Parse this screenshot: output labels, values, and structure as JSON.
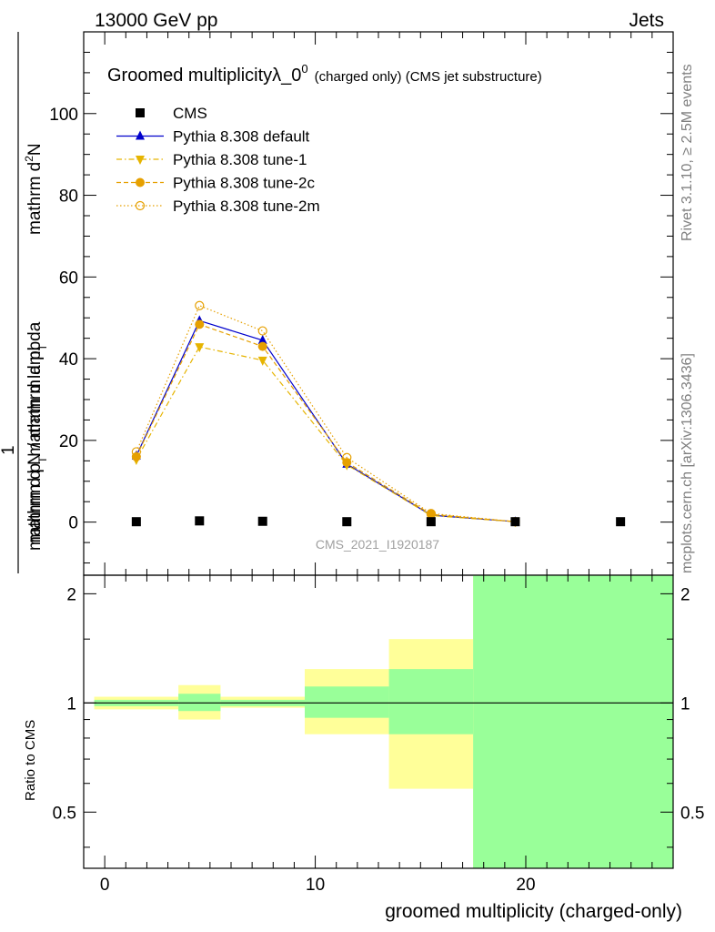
{
  "header": {
    "left": "13000 GeV pp",
    "right": "Jets"
  },
  "side_labels": {
    "rivet": "Rivet 3.1.10, ≥ 2.5M events",
    "mcplots": "mcplots.cern.ch [arXiv:1306.3436]"
  },
  "chart_data": [
    {
      "type": "line",
      "title_main": "Groomed multiplicityλ_0",
      "title_sup": "0",
      "title_suffix": "(charged only) (CMS jet substructure)",
      "ylabel_numerator_main": "mathrm d",
      "ylabel_numerator_sup": "2",
      "ylabel_numerator_end": "N",
      "ylabel_denominator_a": "mathrm d p",
      "ylabel_denominator_sub": "T",
      "ylabel_denominator_b": "mathrm d lambda",
      "ylabel_fraction_one": "1",
      "ylabel_fraction_den_a": "mathrm d N / mathrm d p",
      "ylabel_fraction_den_sub": "T",
      "watermark": "CMS_2021_I1920187",
      "xlim": [
        -1,
        27
      ],
      "ylim": [
        -13,
        120
      ],
      "yticks": [
        0,
        20,
        40,
        60,
        80,
        100
      ],
      "legend_placement": "top-left",
      "series": [
        {
          "name": "CMS",
          "color": "#000000",
          "marker": "square",
          "line": "none",
          "x": [
            1.5,
            4.5,
            7.5,
            11.5,
            15.5,
            19.5,
            24.5
          ],
          "y": [
            0.1,
            0.3,
            0.2,
            0.1,
            0.1,
            0.1,
            0.1
          ]
        },
        {
          "name": "Pythia 8.308 default",
          "color": "#0000cc",
          "marker": "triangle-up",
          "line": "solid",
          "x": [
            1.5,
            4.5,
            7.5,
            11.5,
            15.5,
            19.5
          ],
          "y": [
            16.2,
            49.3,
            44.5,
            14.2,
            1.7,
            0.1
          ]
        },
        {
          "name": "Pythia 8.308 tune-1",
          "color": "#e6b400",
          "marker": "triangle-down",
          "line": "dashdot",
          "x": [
            1.5,
            4.5,
            7.5,
            11.5,
            15.5,
            19.5
          ],
          "y": [
            15.3,
            42.9,
            39.6,
            14.0,
            1.6,
            0.1
          ]
        },
        {
          "name": "Pythia 8.308 tune-2c",
          "color": "#e6a000",
          "marker": "circle-filled",
          "line": "dashed",
          "x": [
            1.5,
            4.5,
            7.5,
            11.5,
            15.5,
            19.5
          ],
          "y": [
            16.0,
            48.4,
            43.0,
            14.6,
            1.9,
            0.1
          ]
        },
        {
          "name": "Pythia 8.308 tune-2m",
          "color": "#e6a000",
          "marker": "circle-open",
          "line": "dotted",
          "x": [
            1.5,
            4.5,
            7.5,
            11.5,
            15.5,
            19.5
          ],
          "y": [
            17.2,
            53.0,
            46.8,
            15.8,
            2.1,
            0.1
          ]
        }
      ]
    },
    {
      "type": "area",
      "ylabel": "Ratio to CMS",
      "xlabel": "groomed multiplicity (charged-only)",
      "xlim": [
        -1,
        27
      ],
      "ylim": [
        0.35,
        2.25
      ],
      "yticks": [
        0.5,
        1,
        2
      ],
      "ytick_labels": [
        "0.5",
        "1",
        "2"
      ],
      "xticks": [
        0,
        10,
        20
      ],
      "reference_line": 1,
      "bands": [
        {
          "x0": -0.5,
          "x1": 3.5,
          "yellow_lo": 0.96,
          "yellow_hi": 1.04,
          "green_lo": 0.98,
          "green_hi": 1.02
        },
        {
          "x0": 3.5,
          "x1": 5.5,
          "yellow_lo": 0.9,
          "yellow_hi": 1.12,
          "green_lo": 0.95,
          "green_hi": 1.06
        },
        {
          "x0": 5.5,
          "x1": 9.5,
          "yellow_lo": 0.97,
          "yellow_hi": 1.04,
          "green_lo": 0.98,
          "green_hi": 1.02
        },
        {
          "x0": 9.5,
          "x1": 13.5,
          "yellow_lo": 0.82,
          "yellow_hi": 1.24,
          "green_lo": 0.91,
          "green_hi": 1.11
        },
        {
          "x0": 13.5,
          "x1": 17.5,
          "yellow_lo": 0.58,
          "yellow_hi": 1.5,
          "green_lo": 0.82,
          "green_hi": 1.24
        },
        {
          "x0": 17.5,
          "x1": 27,
          "yellow_lo": 0.35,
          "yellow_hi": 2.25,
          "green_lo": 0.35,
          "green_hi": 2.25
        }
      ],
      "colors": {
        "yellow": "#ffff99",
        "green": "#99ff99"
      }
    }
  ]
}
